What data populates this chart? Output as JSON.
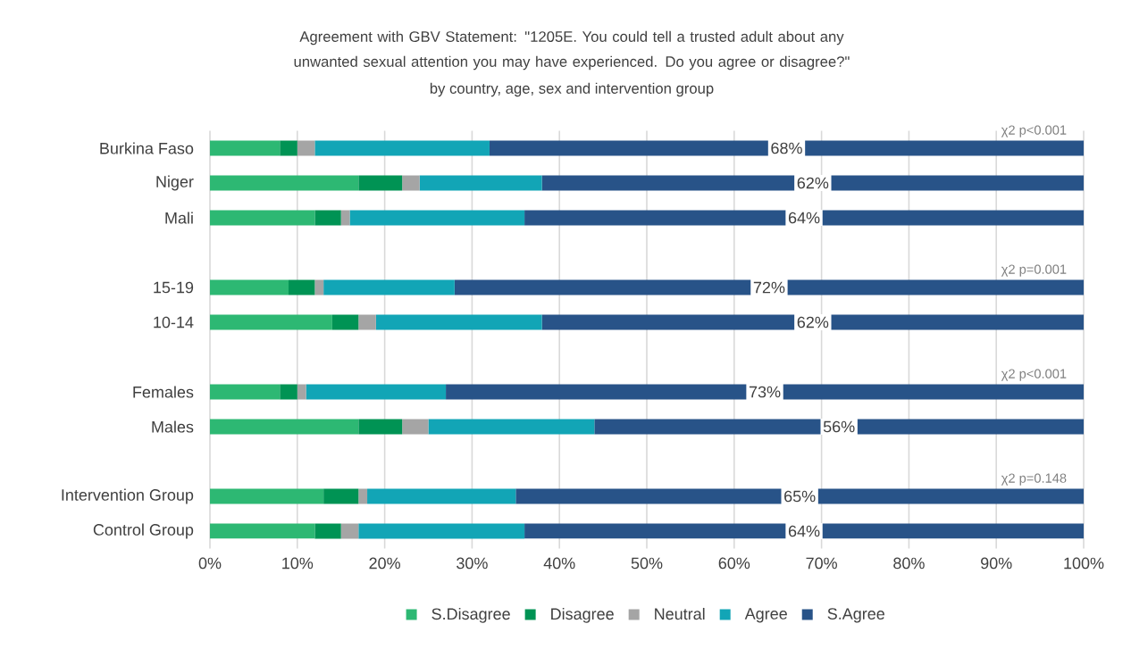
{
  "chart_data": {
    "type": "bar",
    "orientation": "horizontal",
    "stacked": true,
    "title": "Agreement with GBV Statement: \"1205E. You could tell a trusted adult about any unwanted sexual attention you may have experienced. Do you agree or disagree?\"",
    "subtitle": "by country, age, sex and intervention group",
    "categories": [
      "Burkina Faso",
      "Niger",
      "Mali",
      null,
      "15-19",
      "10-14",
      null,
      "Females",
      "Males",
      null,
      "Intervention Group",
      "Control Group"
    ],
    "series": [
      {
        "name": "S.Disagree",
        "color": "#2db873",
        "values": [
          8,
          17,
          12,
          null,
          9,
          14,
          null,
          8,
          17,
          null,
          13,
          12
        ]
      },
      {
        "name": "Disagree",
        "color": "#009354",
        "values": [
          2,
          5,
          3,
          null,
          3,
          3,
          null,
          2,
          5,
          null,
          4,
          3
        ]
      },
      {
        "name": "Neutral",
        "color": "#a5a5a5",
        "values": [
          2,
          2,
          1,
          null,
          1,
          2,
          null,
          1,
          3,
          null,
          1,
          2
        ]
      },
      {
        "name": "Agree",
        "color": "#12a5b6",
        "values": [
          20,
          14,
          20,
          null,
          15,
          19,
          null,
          16,
          19,
          null,
          17,
          19
        ]
      },
      {
        "name": "S.Agree",
        "color": "#285388",
        "values": [
          68,
          62,
          64,
          null,
          72,
          62,
          null,
          73,
          56,
          null,
          65,
          64
        ],
        "value_labels": [
          "68%",
          "62%",
          "64%",
          null,
          "72%",
          "62%",
          null,
          "73%",
          "56%",
          null,
          "65%",
          "64%"
        ]
      }
    ],
    "xlim": [
      0,
      100
    ],
    "xticks": [
      {
        "value": 0,
        "label": "0%"
      },
      {
        "value": 10,
        "label": "10%"
      },
      {
        "value": 20,
        "label": "20%"
      },
      {
        "value": 30,
        "label": "30%"
      },
      {
        "value": 40,
        "label": "40%"
      },
      {
        "value": 50,
        "label": "50%"
      },
      {
        "value": 60,
        "label": "60%"
      },
      {
        "value": 70,
        "label": "70%"
      },
      {
        "value": 80,
        "label": "80%"
      },
      {
        "value": 90,
        "label": "90%"
      },
      {
        "value": 100,
        "label": "100%"
      }
    ],
    "grid": "x",
    "legend": "bottom",
    "annotations": [
      "χ2 p<0.001",
      "χ2 p=0.001",
      "χ2 p<0.001",
      "χ2 p=0.148"
    ]
  }
}
